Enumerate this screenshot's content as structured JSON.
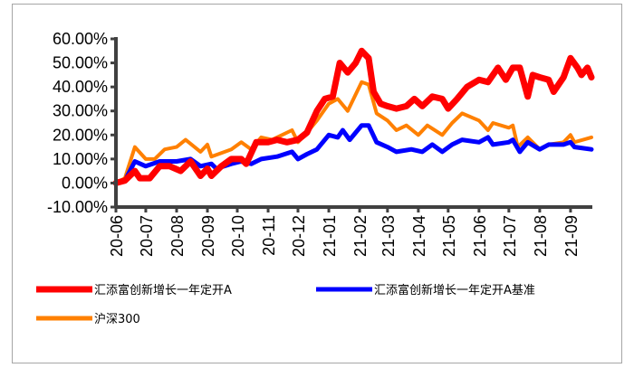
{
  "chart_data": {
    "type": "line",
    "title": "",
    "xlabel": "",
    "ylabel": "",
    "ylim": [
      -10,
      60
    ],
    "yticks": [
      "60.00%",
      "50.00%",
      "40.00%",
      "30.00%",
      "20.00%",
      "10.00%",
      "0.00%",
      "-10.00%"
    ],
    "ytick_values": [
      60,
      50,
      40,
      30,
      20,
      10,
      0,
      -10
    ],
    "xticks": [
      "20-06",
      "20-07",
      "20-08",
      "20-09",
      "20-10",
      "20-11",
      "20-12",
      "21-01",
      "21-02",
      "21-03",
      "21-04",
      "21-05",
      "21-06",
      "21-07",
      "21-08",
      "21-09"
    ],
    "xtick_dates": [
      "2020-06-01",
      "2020-07-01",
      "2020-08-01",
      "2020-09-01",
      "2020-10-01",
      "2020-11-01",
      "2020-12-01",
      "2021-01-01",
      "2021-02-01",
      "2021-03-01",
      "2021-04-01",
      "2021-05-01",
      "2021-06-01",
      "2021-07-01",
      "2021-08-01",
      "2021-09-01"
    ],
    "xlim": [
      "2020-06-01",
      "2021-09-22"
    ],
    "grid": false,
    "legend_position": "bottom",
    "series": [
      {
        "name": "汇添富创新增长一年定开A",
        "color": "#ff0000",
        "points": [
          [
            "2020-06-01",
            0
          ],
          [
            "2020-06-10",
            1
          ],
          [
            "2020-06-20",
            5
          ],
          [
            "2020-06-25",
            2
          ],
          [
            "2020-07-05",
            2
          ],
          [
            "2020-07-15",
            7
          ],
          [
            "2020-07-25",
            7
          ],
          [
            "2020-08-05",
            5
          ],
          [
            "2020-08-15",
            9
          ],
          [
            "2020-08-25",
            3
          ],
          [
            "2020-09-01",
            6
          ],
          [
            "2020-09-05",
            3
          ],
          [
            "2020-09-15",
            7
          ],
          [
            "2020-09-25",
            10
          ],
          [
            "2020-10-05",
            10
          ],
          [
            "2020-10-10",
            8
          ],
          [
            "2020-10-20",
            17
          ],
          [
            "2020-11-01",
            17
          ],
          [
            "2020-11-10",
            18
          ],
          [
            "2020-11-20",
            17
          ],
          [
            "2020-12-01",
            18
          ],
          [
            "2020-12-10",
            21
          ],
          [
            "2020-12-20",
            30
          ],
          [
            "2020-12-28",
            35
          ],
          [
            "2021-01-05",
            36
          ],
          [
            "2021-01-12",
            50
          ],
          [
            "2021-01-20",
            46
          ],
          [
            "2021-01-28",
            50
          ],
          [
            "2021-02-03",
            55
          ],
          [
            "2021-02-10",
            52
          ],
          [
            "2021-02-15",
            38
          ],
          [
            "2021-02-22",
            33
          ],
          [
            "2021-03-01",
            32
          ],
          [
            "2021-03-10",
            31
          ],
          [
            "2021-03-20",
            32
          ],
          [
            "2021-03-28",
            35
          ],
          [
            "2021-04-05",
            32
          ],
          [
            "2021-04-15",
            36
          ],
          [
            "2021-04-25",
            35
          ],
          [
            "2021-05-01",
            31
          ],
          [
            "2021-05-10",
            35
          ],
          [
            "2021-05-20",
            40
          ],
          [
            "2021-06-01",
            43
          ],
          [
            "2021-06-10",
            42
          ],
          [
            "2021-06-20",
            48
          ],
          [
            "2021-06-28",
            43
          ],
          [
            "2021-07-05",
            48
          ],
          [
            "2021-07-12",
            48
          ],
          [
            "2021-07-20",
            36
          ],
          [
            "2021-07-25",
            45
          ],
          [
            "2021-08-01",
            44
          ],
          [
            "2021-08-10",
            43
          ],
          [
            "2021-08-15",
            38
          ],
          [
            "2021-08-25",
            44
          ],
          [
            "2021-09-01",
            52
          ],
          [
            "2021-09-08",
            48
          ],
          [
            "2021-09-12",
            45
          ],
          [
            "2021-09-18",
            48
          ],
          [
            "2021-09-22",
            44
          ]
        ]
      },
      {
        "name": "汇添富创新增长一年定开A基准",
        "color": "#0000ff",
        "points": [
          [
            "2020-06-01",
            0
          ],
          [
            "2020-06-10",
            1
          ],
          [
            "2020-06-20",
            9
          ],
          [
            "2020-07-01",
            7
          ],
          [
            "2020-07-15",
            9
          ],
          [
            "2020-08-01",
            9
          ],
          [
            "2020-08-15",
            10
          ],
          [
            "2020-08-25",
            7
          ],
          [
            "2020-09-05",
            8
          ],
          [
            "2020-09-10",
            6
          ],
          [
            "2020-09-25",
            8
          ],
          [
            "2020-10-05",
            9
          ],
          [
            "2020-10-15",
            8
          ],
          [
            "2020-10-25",
            10
          ],
          [
            "2020-11-10",
            11
          ],
          [
            "2020-11-25",
            13
          ],
          [
            "2020-12-01",
            10
          ],
          [
            "2020-12-10",
            12
          ],
          [
            "2020-12-20",
            14
          ],
          [
            "2021-01-01",
            20
          ],
          [
            "2021-01-10",
            19
          ],
          [
            "2021-01-15",
            22
          ],
          [
            "2021-01-22",
            18
          ],
          [
            "2021-02-03",
            24
          ],
          [
            "2021-02-10",
            24
          ],
          [
            "2021-02-18",
            17
          ],
          [
            "2021-03-01",
            15
          ],
          [
            "2021-03-10",
            13
          ],
          [
            "2021-03-25",
            14
          ],
          [
            "2021-04-05",
            13
          ],
          [
            "2021-04-15",
            16
          ],
          [
            "2021-04-25",
            13
          ],
          [
            "2021-05-05",
            16
          ],
          [
            "2021-05-15",
            18
          ],
          [
            "2021-06-01",
            17
          ],
          [
            "2021-06-10",
            19
          ],
          [
            "2021-06-15",
            16
          ],
          [
            "2021-07-01",
            17
          ],
          [
            "2021-07-05",
            18
          ],
          [
            "2021-07-12",
            13
          ],
          [
            "2021-07-20",
            17
          ],
          [
            "2021-08-01",
            14
          ],
          [
            "2021-08-10",
            16
          ],
          [
            "2021-08-25",
            16
          ],
          [
            "2021-09-01",
            17
          ],
          [
            "2021-09-05",
            15
          ],
          [
            "2021-09-22",
            14
          ]
        ]
      },
      {
        "name": "沪深300",
        "color": "#ff8000",
        "points": [
          [
            "2020-06-01",
            0
          ],
          [
            "2020-06-10",
            2
          ],
          [
            "2020-06-20",
            15
          ],
          [
            "2020-07-01",
            10
          ],
          [
            "2020-07-10",
            10
          ],
          [
            "2020-07-20",
            14
          ],
          [
            "2020-08-01",
            15
          ],
          [
            "2020-08-10",
            18
          ],
          [
            "2020-08-25",
            13
          ],
          [
            "2020-09-01",
            16
          ],
          [
            "2020-09-05",
            11
          ],
          [
            "2020-09-25",
            14
          ],
          [
            "2020-10-05",
            17
          ],
          [
            "2020-10-15",
            14
          ],
          [
            "2020-10-25",
            19
          ],
          [
            "2020-11-05",
            18
          ],
          [
            "2020-11-25",
            22
          ],
          [
            "2020-12-01",
            17
          ],
          [
            "2020-12-10",
            21
          ],
          [
            "2020-12-20",
            26
          ],
          [
            "2021-01-01",
            33
          ],
          [
            "2021-01-10",
            35
          ],
          [
            "2021-01-20",
            30
          ],
          [
            "2021-02-03",
            42
          ],
          [
            "2021-02-10",
            41
          ],
          [
            "2021-02-18",
            29
          ],
          [
            "2021-03-01",
            26
          ],
          [
            "2021-03-10",
            22
          ],
          [
            "2021-03-20",
            24
          ],
          [
            "2021-04-01",
            20
          ],
          [
            "2021-04-10",
            24
          ],
          [
            "2021-04-25",
            20
          ],
          [
            "2021-05-05",
            25
          ],
          [
            "2021-05-15",
            29
          ],
          [
            "2021-06-01",
            26
          ],
          [
            "2021-06-10",
            22
          ],
          [
            "2021-06-15",
            25
          ],
          [
            "2021-07-01",
            23
          ],
          [
            "2021-07-05",
            24
          ],
          [
            "2021-07-10",
            15
          ],
          [
            "2021-07-20",
            19
          ],
          [
            "2021-08-01",
            14
          ],
          [
            "2021-08-10",
            16
          ],
          [
            "2021-08-25",
            17
          ],
          [
            "2021-09-01",
            20
          ],
          [
            "2021-09-05",
            17
          ],
          [
            "2021-09-22",
            19
          ]
        ]
      }
    ]
  }
}
